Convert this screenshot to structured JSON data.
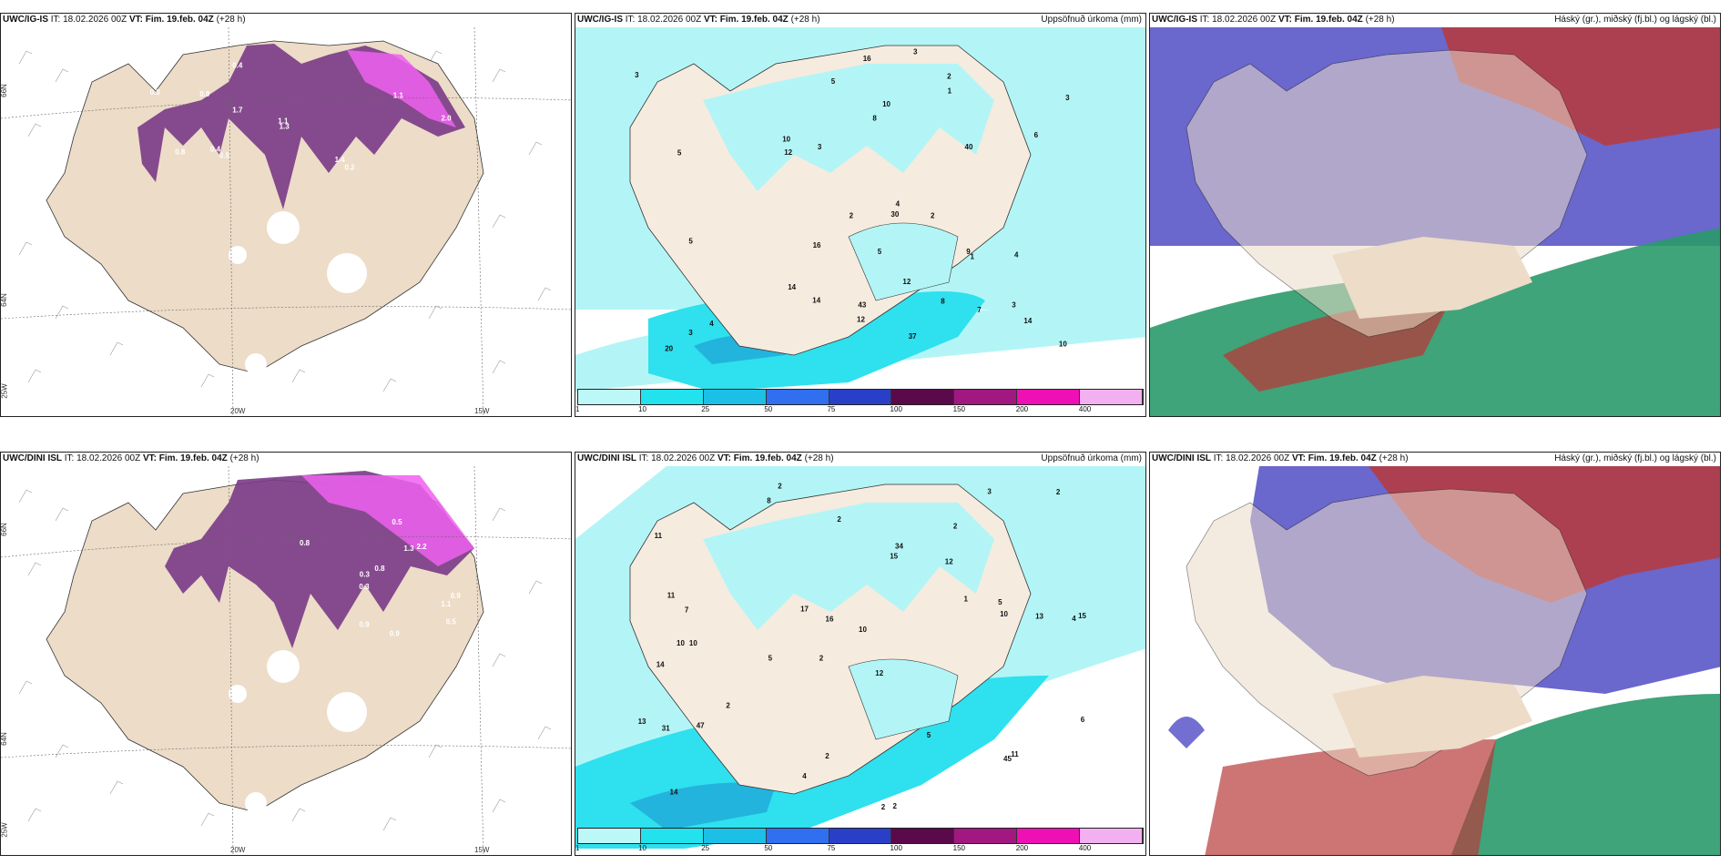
{
  "colors": {
    "land": "#ecdcc8",
    "land_precip": "#f6ebdf",
    "precip_light": "#b3f5f6",
    "precip_mid": "#2fe0ee",
    "precip_heavy": "#22b4dd",
    "snow_purple": "#ee60ee",
    "snow_dark": "#7a3a86",
    "cloud_blue": "#5a56c8",
    "cloud_red": "#b83a3a",
    "cloud_green": "#2a9a6a"
  },
  "rows": [
    {
      "model": "UWC/IG-IS",
      "panels": [
        {
          "model": "UWC/IG-IS",
          "it_label": "IT:",
          "it": "18.02.2026 00Z",
          "vt_label": "VT:",
          "vt": "Fim. 19.feb. 04Z",
          "lead": "(+28 h)",
          "right_title": "",
          "lat_labels": [
            "66N",
            "64N"
          ],
          "lon_labels": [
            "20W",
            "15W"
          ],
          "corner_label": "25W",
          "labels": [
            "0.2",
            "0.4",
            "0.4",
            "0.9",
            "1.1",
            "1.4",
            "2.0",
            "1.7",
            "1.3",
            "0.5",
            "0.8",
            "0.3",
            "1.1"
          ]
        },
        {
          "model": "UWC/IG-IS",
          "it_label": "IT:",
          "it": "18.02.2026 00Z",
          "vt_label": "VT:",
          "vt": "Fim. 19.feb. 04Z",
          "lead": "(+28 h)",
          "right_title": "Uppsöfnuð úrkoma (mm)",
          "labels": [
            "3",
            "4",
            "4",
            "5",
            "5",
            "3",
            "3",
            "2",
            "7",
            "14",
            "10",
            "12",
            "14",
            "16",
            "8",
            "10",
            "9",
            "5",
            "2",
            "3",
            "3",
            "4",
            "12",
            "2",
            "1",
            "1",
            "3",
            "8",
            "6",
            "12",
            "14",
            "16",
            "10",
            "20",
            "30",
            "37",
            "43",
            "40",
            "5"
          ]
        },
        {
          "model": "UWC/IG-IS",
          "it_label": "IT:",
          "it": "18.02.2026 00Z",
          "vt_label": "VT:",
          "vt": "Fim. 19.feb. 04Z",
          "lead": "(+28 h)",
          "right_title": "Háský (gr.), miðský (fj.bl.) og lágský (bl.)"
        }
      ]
    },
    {
      "model": "UWC/DINI ISL",
      "panels": [
        {
          "model": "UWC/DINI ISL",
          "it_label": "IT:",
          "it": "18.02.2026 00Z",
          "vt_label": "VT:",
          "vt": "Fim. 19.feb. 04Z",
          "lead": "(+28 h)",
          "right_title": "",
          "lat_labels": [
            "66N",
            "64N"
          ],
          "lon_labels": [
            "20W",
            "15W"
          ],
          "corner_label": "25W",
          "labels": [
            "0.3",
            "0.9",
            "1.3",
            "1.1",
            "0.9",
            "0.5",
            "2.2",
            "0.8",
            "0.5",
            "0.9",
            "0.8",
            "0.3"
          ]
        },
        {
          "model": "UWC/DINI ISL",
          "it_label": "IT:",
          "it": "18.02.2026 00Z",
          "vt_label": "VT:",
          "vt": "Fim. 19.feb. 04Z",
          "lead": "(+28 h)",
          "right_title": "Uppsöfnuð úrkoma (mm)",
          "labels": [
            "2",
            "2",
            "4",
            "2",
            "12",
            "10",
            "11",
            "12",
            "14",
            "15",
            "10",
            "14",
            "8",
            "5",
            "2",
            "2",
            "2",
            "3",
            "1",
            "2",
            "7",
            "10",
            "15",
            "13",
            "13",
            "11",
            "16",
            "10",
            "11",
            "31",
            "45",
            "34",
            "47",
            "17",
            "5",
            "6",
            "5",
            "4",
            "2",
            "2"
          ]
        },
        {
          "model": "UWC/DINI ISL",
          "it_label": "IT:",
          "it": "18.02.2026 00Z",
          "vt_label": "VT:",
          "vt": "Fim. 19.feb. 04Z",
          "lead": "(+28 h)",
          "right_title": "Háský (gr.), miðský (fj.bl.) og lágský (bl.)"
        }
      ]
    }
  ],
  "colorbar": {
    "ticks": [
      "1",
      "10",
      "25",
      "50",
      "75",
      "100",
      "150",
      "200",
      "400"
    ],
    "colors": [
      "#bdf8f8",
      "#22e2ee",
      "#1cc0e6",
      "#2f6ff0",
      "#2a3fc8",
      "#5a0a4a",
      "#a01880",
      "#ee10b4",
      "#f2b0f0"
    ]
  }
}
